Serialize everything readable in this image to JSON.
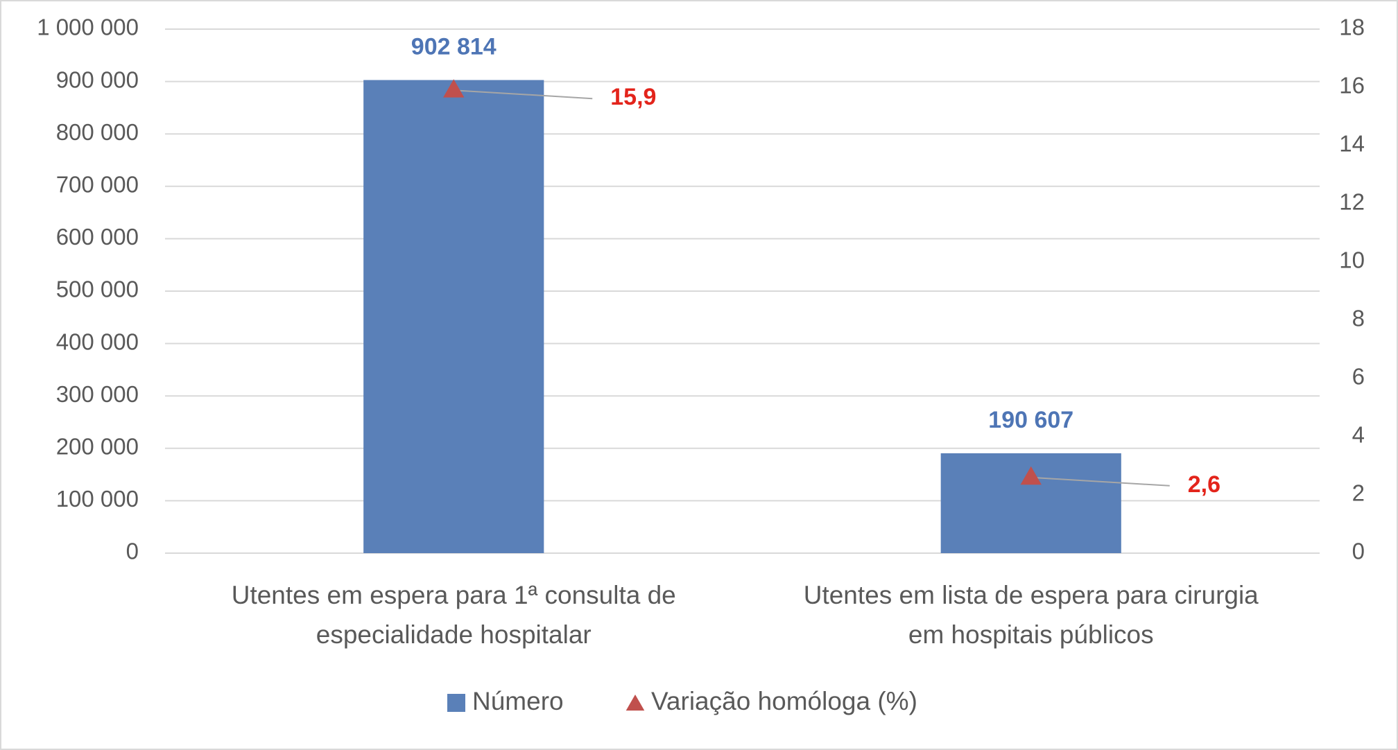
{
  "chart_data": {
    "type": "bar",
    "categories": [
      [
        "Utentes em espera para 1ª consulta de",
        "especialidade hospitalar"
      ],
      [
        "Utentes em lista de espera para cirurgia",
        "em hospitais públicos"
      ]
    ],
    "series": [
      {
        "name": "Número",
        "type": "bar",
        "color": "#5a80b8",
        "label_color": "#4e75b5",
        "values": [
          902814,
          190607
        ],
        "value_labels": [
          "902 814",
          "190 607"
        ]
      },
      {
        "name": "Variação homóloga (%)",
        "type": "scatter",
        "marker": "triangle",
        "axis": "y2",
        "color": "#c0504d",
        "label_color": "#e3241b",
        "values": [
          15.9,
          2.6
        ],
        "value_labels": [
          "15,9",
          "2,6"
        ]
      }
    ],
    "ylim": [
      0,
      1000000
    ],
    "yticks": [
      0,
      {
        "value": 100000,
        "label": "100 000"
      },
      {
        "value": 200000,
        "label": "200 000"
      },
      {
        "value": 300000,
        "label": "300 000"
      },
      {
        "value": 400000,
        "label": "400 000"
      },
      {
        "value": 500000,
        "label": "500 000"
      },
      {
        "value": 600000,
        "label": "600 000"
      },
      {
        "value": 700000,
        "label": "700 000"
      },
      {
        "value": 800000,
        "label": "800 000"
      },
      {
        "value": 900000,
        "label": "900 000"
      },
      {
        "value": 1000000,
        "label": "1 000 000"
      }
    ],
    "y2lim": [
      0,
      18
    ],
    "y2ticks": [
      0,
      2,
      4,
      6,
      8,
      10,
      12,
      14,
      16,
      18
    ],
    "grid": true,
    "legend": "bottom"
  }
}
